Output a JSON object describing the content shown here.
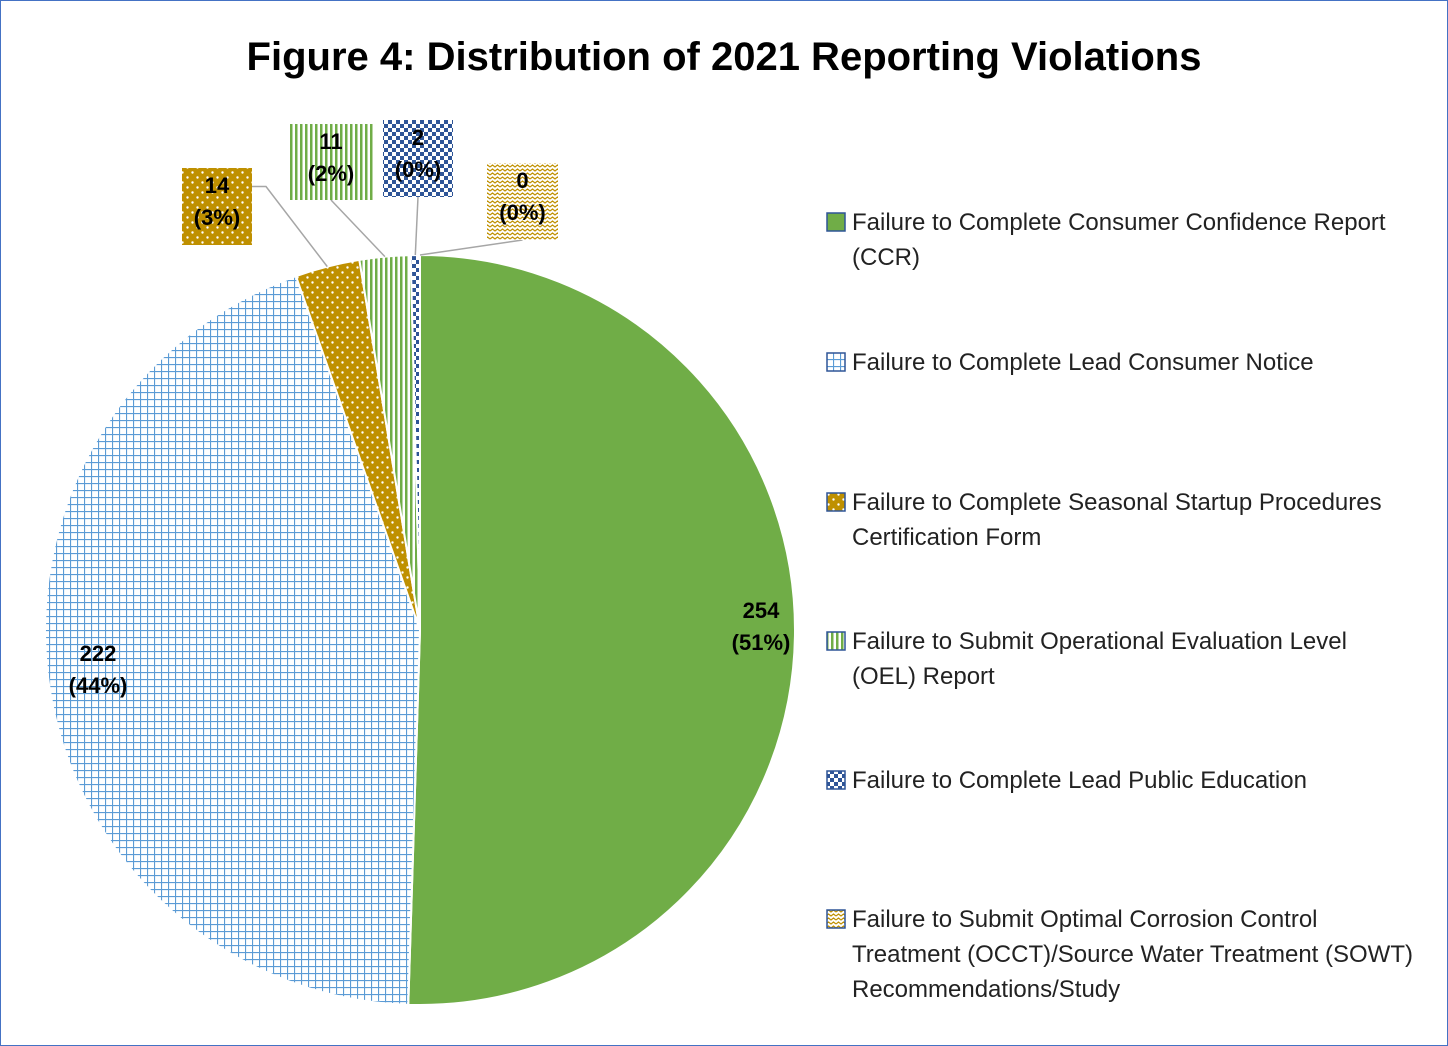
{
  "chart_data": {
    "type": "pie",
    "title": "Figure 4: Distribution of 2021 Reporting Violations",
    "categories": [
      "Failure to Complete Consumer Confidence Report (CCR)",
      "Failure to Complete Lead Consumer Notice",
      "Failure to Complete Seasonal Startup Procedures Certification Form",
      "Failure to Submit Operational Evaluation Level (OEL) Report",
      "Failure to Complete Lead Public Education",
      "Failure to Submit Optimal Corrosion Control Treatment (OCCT)/Source Water Treatment (SOWT) Recommendations/Study"
    ],
    "values": [
      254,
      222,
      14,
      11,
      2,
      0
    ],
    "percent_labels": [
      "(51%)",
      "(44%)",
      "(3%)",
      "(2%)",
      "(0%)",
      "(0%)"
    ],
    "colors": [
      "#70ad47",
      "#5b9bd5",
      "#bf9000",
      "#70ad47",
      "#2f5597",
      "#bf9000"
    ],
    "patterns": [
      "solid",
      "grid",
      "dots",
      "vertical-stripes",
      "checker",
      "wave"
    ],
    "legend": "right"
  }
}
